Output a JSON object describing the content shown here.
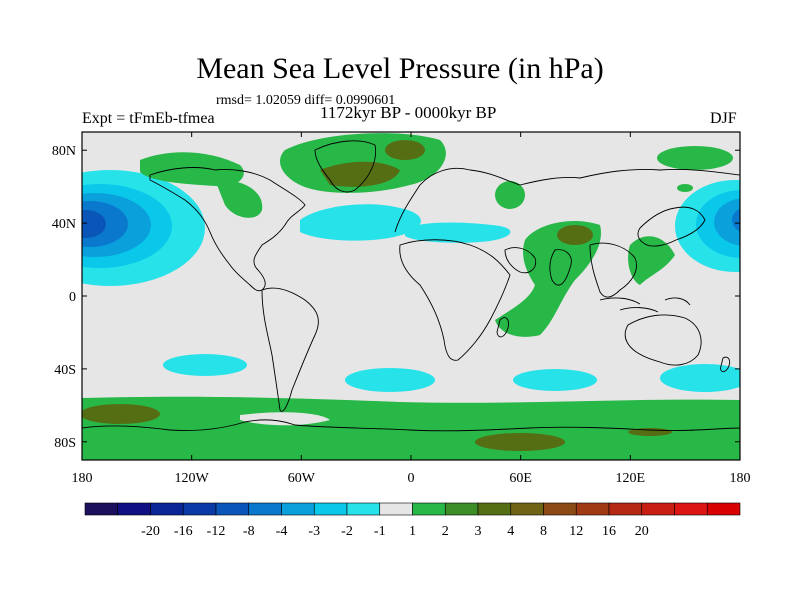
{
  "header": {
    "title": "Mean Sea Level Pressure (in hPa)",
    "stats": "rmsd= 1.02059 diff= 0.0990601",
    "experiment": "Expt = tFmEb-tfmea",
    "period": "1172kyr BP - 0000kyr BP",
    "season": "DJF"
  },
  "map": {
    "lon_range": [
      -180,
      180
    ],
    "lat_range": [
      -90,
      90
    ],
    "lat_ticks": [
      "80N",
      "40N",
      "0",
      "40S",
      "80S"
    ],
    "lon_ticks": [
      "180",
      "120W",
      "60W",
      "0",
      "60E",
      "120E",
      "180"
    ],
    "background_color": "#e6e6e6"
  },
  "colorbar": {
    "colors": [
      "#1c0f5c",
      "#101082",
      "#0a2596",
      "#0a3aa6",
      "#0a55b8",
      "#0a78cc",
      "#0aa0dc",
      "#0ac8ea",
      "#28e2ea",
      "#e6e6e6",
      "#28b848",
      "#3c8c28",
      "#556e14",
      "#6e6414",
      "#8c4a14",
      "#a03a14",
      "#b42814",
      "#c81e14",
      "#dc1414",
      "#d80000"
    ],
    "labels": [
      "-20",
      "-16",
      "-12",
      "-8",
      "-4",
      "-3",
      "-2",
      "-1",
      "1",
      "2",
      "3",
      "4",
      "8",
      "12",
      "16",
      "20"
    ]
  }
}
